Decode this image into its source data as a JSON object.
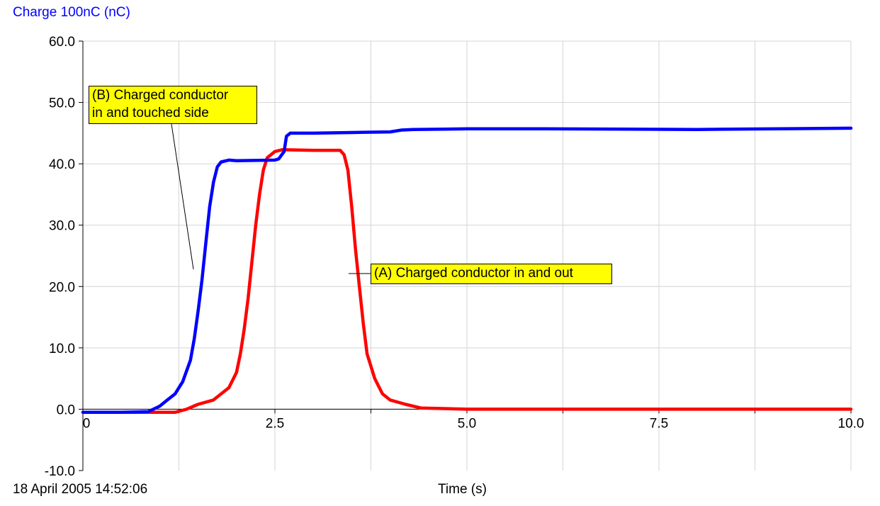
{
  "header": {
    "y_axis_label": "Charge 100nC (nC)"
  },
  "footer": {
    "timestamp": "18 April 2005  14:52:06",
    "x_axis_label": "Time (s)"
  },
  "annotations": {
    "b": "(B) Charged conductor in and touched side",
    "b_line1": "(B) Charged conductor",
    "b_line2": "in and touched side",
    "a": "(A) Charged conductor in and out"
  },
  "chart_data": {
    "type": "line",
    "ylabel": "Charge 100nC (nC)",
    "xlabel": "Time (s)",
    "xlim": [
      0,
      10
    ],
    "ylim": [
      -10,
      60
    ],
    "x_ticks": [
      0,
      2.5,
      5,
      7.5,
      10
    ],
    "x_tick_labels": [
      "0",
      "2.5",
      "5.0",
      "7.5",
      "10.0"
    ],
    "y_ticks": [
      -10,
      0,
      10,
      20,
      30,
      40,
      50,
      60
    ],
    "y_tick_labels": [
      "-10.0",
      "0.0",
      "10.0",
      "20.0",
      "30.0",
      "40.0",
      "50.0",
      "60.0"
    ],
    "grid": true,
    "series": [
      {
        "label": "(B) Charged conductor in and touched side",
        "color": "#0000ff",
        "points": [
          [
            0,
            -0.5
          ],
          [
            0.5,
            -0.5
          ],
          [
            0.85,
            -0.4
          ],
          [
            1.0,
            0.5
          ],
          [
            1.1,
            1.5
          ],
          [
            1.2,
            2.5
          ],
          [
            1.3,
            4.5
          ],
          [
            1.4,
            8
          ],
          [
            1.45,
            11.5
          ],
          [
            1.5,
            16
          ],
          [
            1.55,
            21
          ],
          [
            1.6,
            27
          ],
          [
            1.65,
            33
          ],
          [
            1.7,
            37
          ],
          [
            1.75,
            39.5
          ],
          [
            1.8,
            40.3
          ],
          [
            1.9,
            40.6
          ],
          [
            2.0,
            40.5
          ],
          [
            2.5,
            40.6
          ],
          [
            2.55,
            40.8
          ],
          [
            2.62,
            42
          ],
          [
            2.65,
            44.5
          ],
          [
            2.7,
            45
          ],
          [
            3.0,
            45
          ],
          [
            3.5,
            45.1
          ],
          [
            4.0,
            45.2
          ],
          [
            4.15,
            45.5
          ],
          [
            4.3,
            45.6
          ],
          [
            5.0,
            45.7
          ],
          [
            6.0,
            45.7
          ],
          [
            8.0,
            45.6
          ],
          [
            10.0,
            45.8
          ]
        ]
      },
      {
        "label": "(A) Charged conductor in and out",
        "color": "#ff0000",
        "points": [
          [
            0,
            -0.5
          ],
          [
            1.2,
            -0.5
          ],
          [
            1.35,
            0
          ],
          [
            1.5,
            0.8
          ],
          [
            1.7,
            1.5
          ],
          [
            1.8,
            2.5
          ],
          [
            1.9,
            3.5
          ],
          [
            2.0,
            6
          ],
          [
            2.05,
            9
          ],
          [
            2.1,
            13
          ],
          [
            2.15,
            18
          ],
          [
            2.2,
            24
          ],
          [
            2.25,
            30
          ],
          [
            2.3,
            35
          ],
          [
            2.35,
            39
          ],
          [
            2.4,
            41
          ],
          [
            2.5,
            42
          ],
          [
            2.6,
            42.3
          ],
          [
            3.0,
            42.2
          ],
          [
            3.35,
            42.2
          ],
          [
            3.4,
            41.5
          ],
          [
            3.45,
            39
          ],
          [
            3.5,
            33
          ],
          [
            3.55,
            26
          ],
          [
            3.6,
            20
          ],
          [
            3.65,
            14
          ],
          [
            3.7,
            9
          ],
          [
            3.8,
            5
          ],
          [
            3.9,
            2.5
          ],
          [
            4.0,
            1.5
          ],
          [
            4.2,
            0.8
          ],
          [
            4.4,
            0.2
          ],
          [
            5.0,
            0
          ],
          [
            10.0,
            0
          ]
        ]
      }
    ]
  }
}
